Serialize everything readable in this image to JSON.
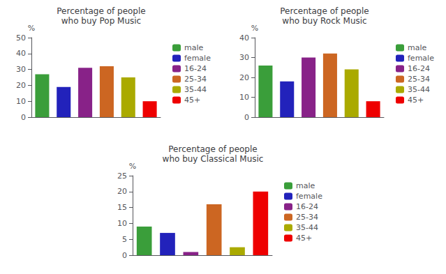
{
  "chart_data": [
    {
      "type": "bar",
      "title": "Percentage of people\nwho buy Pop Music",
      "ylabel": "%",
      "categories": [
        "male",
        "female",
        "16-24",
        "25-34",
        "35-44",
        "45+"
      ],
      "values": [
        27,
        19,
        31,
        32,
        25,
        10
      ],
      "colors": [
        "#3a9e3a",
        "#2222bb",
        "#882288",
        "#cc6622",
        "#aaaa00",
        "#ee0000"
      ],
      "ylim": [
        0,
        50
      ],
      "yticks": [
        0,
        10,
        20,
        30,
        40,
        50
      ],
      "grid": false,
      "legend": "upper right",
      "tick_labels": "y"
    },
    {
      "type": "bar",
      "title": "Percentage of people\nwho buy Rock Music",
      "ylabel": "%",
      "categories": [
        "male",
        "female",
        "16-24",
        "25-34",
        "35-44",
        "45+"
      ],
      "values": [
        26,
        18,
        30,
        32,
        24,
        8
      ],
      "colors": [
        "#3a9e3a",
        "#2222bb",
        "#882288",
        "#cc6622",
        "#aaaa00",
        "#ee0000"
      ],
      "ylim": [
        0,
        40
      ],
      "yticks": [
        0,
        10,
        20,
        30,
        40
      ],
      "grid": false,
      "legend": "upper right",
      "tick_labels": "y"
    },
    {
      "type": "bar",
      "title": "Percentage of people\nwho buy Classical Music",
      "ylabel": "%",
      "categories": [
        "male",
        "female",
        "16-24",
        "25-34",
        "35-44",
        "45+"
      ],
      "values": [
        9,
        7,
        1,
        16,
        2.5,
        20
      ],
      "colors": [
        "#3a9e3a",
        "#2222bb",
        "#882288",
        "#cc6622",
        "#aaaa00",
        "#ee0000"
      ],
      "ylim": [
        0,
        25
      ],
      "yticks": [
        0,
        5,
        10,
        15,
        20,
        25
      ],
      "grid": false,
      "legend": "upper right",
      "tick_labels": "y"
    }
  ]
}
